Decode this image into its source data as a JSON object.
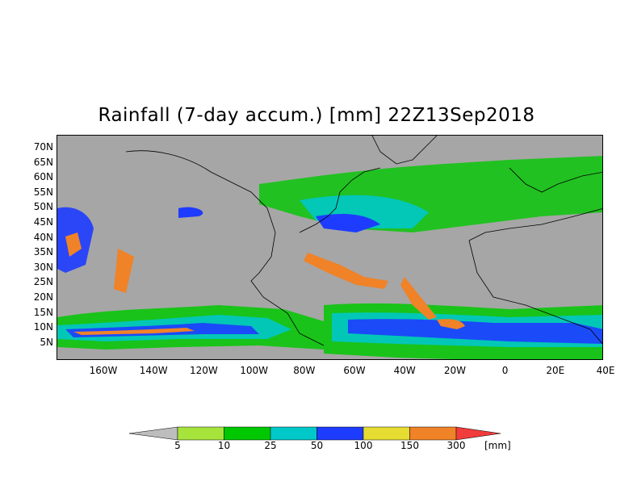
{
  "title": "Rainfall (7-day accum.) [mm] 22Z13Sep2018",
  "lat_labels": [
    "70N",
    "65N",
    "60N",
    "55N",
    "50N",
    "45N",
    "40N",
    "35N",
    "30N",
    "25N",
    "20N",
    "15N",
    "10N",
    "5N"
  ],
  "lon_labels": [
    "160W",
    "140W",
    "120W",
    "100W",
    "80W",
    "60W",
    "40W",
    "20W",
    "0",
    "20E",
    "40E"
  ],
  "colorbar": {
    "labels": [
      "5",
      "10",
      "25",
      "50",
      "100",
      "150",
      "300"
    ],
    "unit": "[mm]",
    "colors": [
      "#bdbdbd",
      "#a6e43c",
      "#00c800",
      "#00c8c8",
      "#1e3cff",
      "#e6dc32",
      "#f08228",
      "#f03c3c"
    ]
  },
  "map": {
    "background_color": "#a6a6a6",
    "coastline_color": "#000000"
  }
}
